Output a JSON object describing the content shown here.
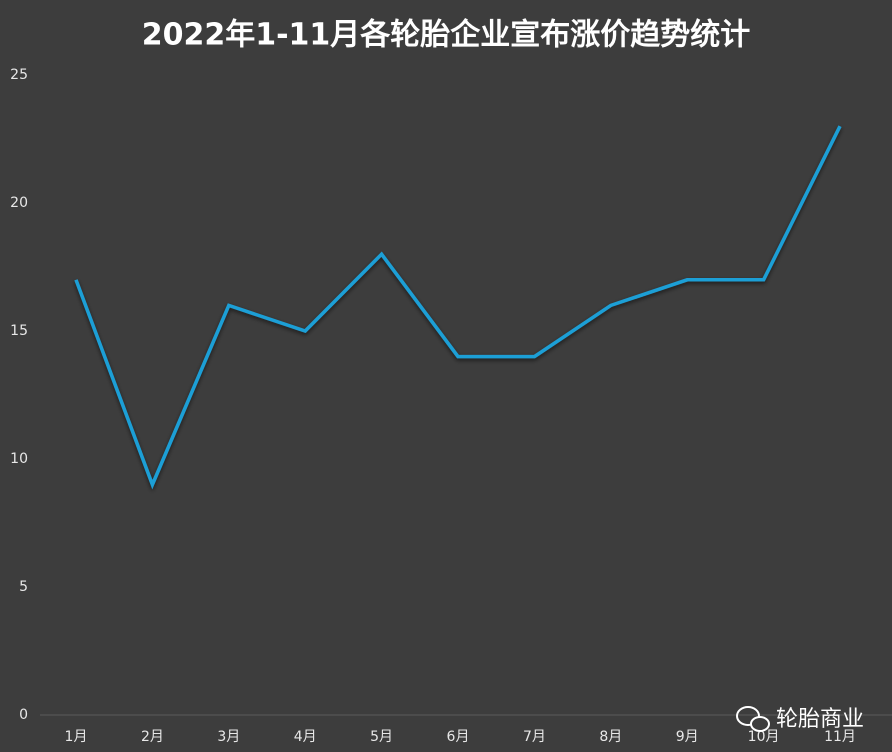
{
  "chart_data": {
    "type": "line",
    "title": "2022年1-11月各轮胎企业宣布涨价趋势统计",
    "categories": [
      "1月",
      "2月",
      "3月",
      "4月",
      "5月",
      "6月",
      "7月",
      "8月",
      "9月",
      "10月",
      "11月"
    ],
    "values": [
      17,
      9,
      16,
      15,
      18,
      14,
      14,
      16,
      17,
      17,
      23
    ],
    "color": "#1e9fd6",
    "ylim": [
      0,
      25
    ],
    "yticks": [
      0,
      5,
      10,
      15,
      20,
      25
    ],
    "grid": false,
    "watermark": "轮胎商业"
  }
}
